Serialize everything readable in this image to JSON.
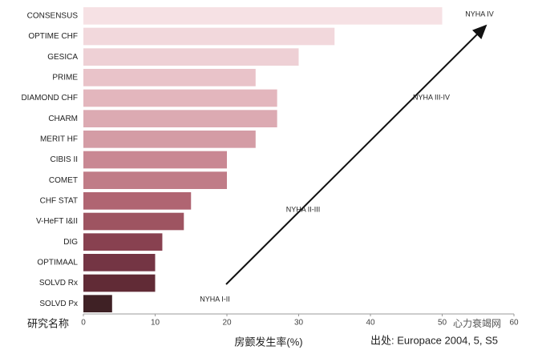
{
  "chart_data": {
    "type": "bar",
    "orientation": "horizontal",
    "categories": [
      "CONSENSUS",
      "OPTIME CHF",
      "GESICA",
      "PRIME",
      "DIAMOND CHF",
      "CHARM",
      "MERIT HF",
      "CIBIS II",
      "COMET",
      "CHF STAT",
      "V-HeFT I&II",
      "DIG",
      "OPTIMAAL",
      "SOLVD Rx",
      "SOLVD Px"
    ],
    "values": [
      50,
      35,
      30,
      24,
      27,
      27,
      24,
      20,
      20,
      15,
      14,
      11,
      10,
      10,
      4
    ],
    "colors": [
      "#f6e1e4",
      "#f2d8dc",
      "#eed0d5",
      "#e9c3c9",
      "#e3b6bd",
      "#dcaab2",
      "#d49ca5",
      "#c98893",
      "#c07c87",
      "#b06572",
      "#9e5461",
      "#884150",
      "#743544",
      "#612b36",
      "#3f2125"
    ],
    "xlim": [
      0,
      60
    ],
    "xticks": [
      0,
      10,
      20,
      30,
      40,
      50,
      60
    ],
    "category_axis_label": "研究名称",
    "xlabel": "房颤发生率(%)",
    "source": "出处: Europace 2004, 5, S5",
    "watermark": "心力衰竭网",
    "annotations": [
      "NYHA IV",
      "NYHA III-IV",
      "NYHA II-III",
      "NYHA I-II"
    ]
  }
}
